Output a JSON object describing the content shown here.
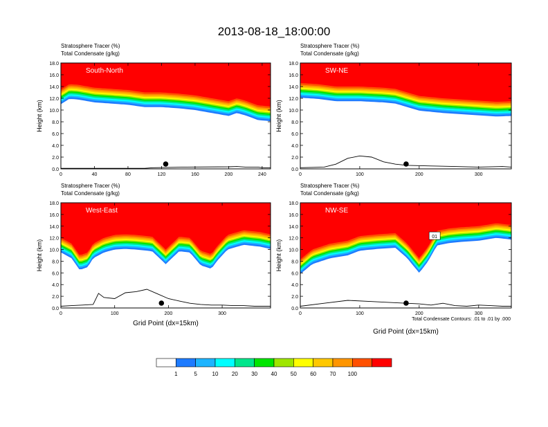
{
  "figure": {
    "title": "2013-08-18_18:00:00",
    "contour_note": "Total Condensate Contours: .01 to .01 by .000"
  },
  "colorbar": {
    "colors": [
      "#ffffff",
      "#1e7bff",
      "#1eb4ff",
      "#00ffff",
      "#00e68c",
      "#00e600",
      "#9fe600",
      "#ffff00",
      "#ffc800",
      "#ff9600",
      "#ff5000",
      "#ff0000"
    ],
    "labels": [
      "1",
      "5",
      "10",
      "20",
      "30",
      "40",
      "50",
      "60",
      "70",
      "100"
    ]
  },
  "chart_data": [
    {
      "type": "heatmap",
      "title": "South-North",
      "header_lines": [
        "Stratosphere Tracer   (%)",
        "Total Condensate   (g/kg)"
      ],
      "ylabel": "Height (km)",
      "xlabel": "",
      "xlim": [
        0,
        250
      ],
      "ylim": [
        0,
        18
      ],
      "xticks": [
        0,
        40,
        80,
        120,
        160,
        200,
        240
      ],
      "yticks": [
        "0.0",
        "2.0",
        "4.0",
        "6.0",
        "8.0",
        "10.0",
        "12.0",
        "14.0",
        "16.0",
        "18.0"
      ],
      "tracer_base_km": {
        "x": [
          0,
          10,
          20,
          40,
          60,
          80,
          100,
          120,
          140,
          160,
          180,
          200,
          210,
          220,
          235,
          250
        ],
        "y": [
          13.5,
          14.4,
          14.3,
          13.8,
          13.6,
          13.4,
          13.0,
          13.0,
          12.8,
          12.5,
          12.0,
          11.5,
          12.0,
          11.6,
          10.8,
          10.6
        ]
      },
      "terrain_km": {
        "x": [
          0,
          100,
          110,
          150,
          200,
          210,
          220,
          235,
          240,
          250
        ],
        "y": [
          0.1,
          0.1,
          0.2,
          0.3,
          0.35,
          0.4,
          0.3,
          0.3,
          0.2,
          0.2
        ]
      },
      "marker_x": 125
    },
    {
      "type": "heatmap",
      "title": "SW-NE",
      "header_lines": [
        "Stratosphere Tracer   (%)",
        "Total Condensate   (g/kg)"
      ],
      "ylabel": "Height (km)",
      "xlabel": "",
      "xlim": [
        0,
        355
      ],
      "ylim": [
        0,
        18
      ],
      "xticks": [
        0,
        100,
        200,
        300
      ],
      "yticks": [
        "0.0",
        "2.0",
        "4.0",
        "6.0",
        "8.0",
        "10.0",
        "12.0",
        "14.0",
        "16.0",
        "18.0"
      ],
      "tracer_base_km": {
        "x": [
          0,
          30,
          60,
          100,
          140,
          160,
          200,
          240,
          270,
          300,
          330,
          355
        ],
        "y": [
          14.6,
          14.4,
          14.0,
          14.0,
          13.8,
          13.6,
          12.4,
          12.0,
          11.8,
          11.6,
          11.4,
          11.5
        ]
      },
      "terrain_km": {
        "x": [
          0,
          40,
          60,
          80,
          100,
          120,
          140,
          160,
          180,
          220,
          260,
          300,
          340,
          355
        ],
        "y": [
          0.2,
          0.3,
          0.8,
          1.8,
          2.2,
          2.0,
          1.2,
          0.8,
          0.6,
          0.5,
          0.4,
          0.3,
          0.4,
          0.3
        ]
      },
      "marker_x": 178
    },
    {
      "type": "heatmap",
      "title": "West-East",
      "header_lines": [
        "Stratosphere Tracer   (%)",
        "Total Condensate   (g/kg)"
      ],
      "ylabel": "Height (km)",
      "xlabel": "Grid Point (dx=15km)",
      "xlim": [
        0,
        390
      ],
      "ylim": [
        0,
        18
      ],
      "xticks": [
        0,
        100,
        200,
        300
      ],
      "yticks": [
        "0.0",
        "2.0",
        "4.0",
        "6.0",
        "8.0",
        "10.0",
        "12.0",
        "14.0",
        "16.0",
        "18.0"
      ],
      "tracer_base_km": {
        "x": [
          0,
          20,
          35,
          50,
          60,
          80,
          100,
          120,
          140,
          170,
          195,
          220,
          240,
          260,
          280,
          290,
          310,
          340,
          370,
          390
        ],
        "y": [
          12.0,
          11.0,
          9.0,
          9.5,
          11.0,
          12.0,
          12.5,
          12.6,
          12.5,
          12.2,
          10.0,
          12.2,
          12.0,
          9.8,
          9.2,
          10.5,
          12.5,
          13.3,
          13.0,
          12.6
        ]
      },
      "terrain_km": {
        "x": [
          0,
          20,
          40,
          60,
          70,
          80,
          100,
          120,
          140,
          160,
          180,
          200,
          220,
          240,
          260,
          280,
          300,
          320,
          340,
          360,
          390
        ],
        "y": [
          0.3,
          0.4,
          0.5,
          0.6,
          2.5,
          1.8,
          1.6,
          2.6,
          2.8,
          3.2,
          2.4,
          1.6,
          1.2,
          0.8,
          0.6,
          0.5,
          0.5,
          0.4,
          0.4,
          0.3,
          0.3
        ]
      },
      "marker_x": 187
    },
    {
      "type": "heatmap",
      "title": "NW-SE",
      "header_lines": [
        "Stratosphere Tracer   (%)",
        "Total Condensate   (g/kg)"
      ],
      "ylabel": "Height (km)",
      "xlabel": "Grid Point (dx=15km)",
      "xlim": [
        0,
        355
      ],
      "ylim": [
        0,
        18
      ],
      "xticks": [
        0,
        100,
        200,
        300
      ],
      "yticks": [
        "0.0",
        "2.0",
        "4.0",
        "6.0",
        "8.0",
        "10.0",
        "12.0",
        "14.0",
        "16.0",
        "18.0"
      ],
      "tracer_base_km": {
        "x": [
          0,
          20,
          50,
          80,
          100,
          130,
          160,
          180,
          200,
          215,
          230,
          250,
          270,
          300,
          330,
          355
        ],
        "y": [
          8.3,
          10.0,
          11.0,
          11.5,
          12.3,
          12.6,
          12.8,
          11.0,
          8.5,
          10.5,
          13.2,
          13.6,
          13.8,
          14.0,
          14.5,
          14.2
        ]
      },
      "terrain_km": {
        "x": [
          0,
          40,
          80,
          120,
          160,
          200,
          220,
          240,
          260,
          280,
          300,
          320,
          340,
          355
        ],
        "y": [
          0.3,
          0.8,
          1.3,
          1.1,
          0.9,
          0.7,
          0.5,
          0.8,
          0.4,
          0.3,
          0.5,
          0.4,
          0.3,
          0.3
        ]
      },
      "marker_x": 178,
      "box_label": "01"
    }
  ]
}
